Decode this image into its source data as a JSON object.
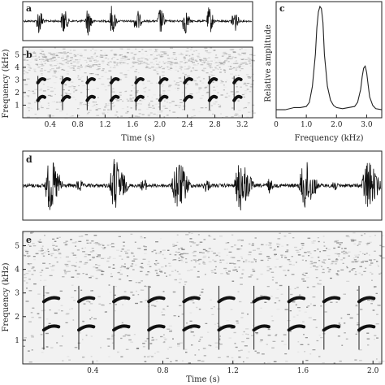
{
  "chart_data": [
    {
      "panel": "a",
      "type": "line",
      "title": "",
      "xlabel": "",
      "ylabel": "",
      "pulse_times": [
        0.22,
        0.58,
        0.94,
        1.29,
        1.65,
        2.0,
        2.36,
        2.72,
        3.08
      ],
      "xlim": [
        0.0,
        3.35
      ]
    },
    {
      "panel": "b",
      "type": "heatmap",
      "title": "",
      "xlabel": "Time (s)",
      "ylabel": "Frequency (kHz)",
      "xlim": [
        0.0,
        3.35
      ],
      "ylim": [
        0,
        5.6
      ],
      "x_ticks": [
        0.4,
        0.8,
        1.2,
        1.6,
        2.0,
        2.4,
        2.8,
        3.2
      ],
      "x_tick_labels": [
        "0.4",
        "0.8",
        "1.2",
        "1.6",
        "2.0",
        "2.4",
        "2.8",
        "3.2"
      ],
      "y_ticks": [
        1,
        2,
        3,
        4,
        5
      ],
      "y_tick_labels": [
        "1",
        "2",
        "3",
        "4",
        "5"
      ],
      "call_times": [
        0.22,
        0.58,
        0.94,
        1.29,
        1.65,
        2.0,
        2.36,
        2.72,
        3.08
      ],
      "call_bands_khz": [
        1.5,
        2.9
      ]
    },
    {
      "panel": "c",
      "type": "line",
      "title": "",
      "xlabel": "Frequency (kHz)",
      "ylabel": "Relative amplitude",
      "xlim": [
        0,
        3.5
      ],
      "x_ticks": [
        0,
        1.0,
        2.0,
        3.0
      ],
      "x_tick_labels": [
        "0",
        "1.0",
        "2.0",
        "3.0"
      ],
      "x": [
        0,
        0.3,
        0.6,
        0.8,
        1.0,
        1.1,
        1.2,
        1.3,
        1.35,
        1.4,
        1.45,
        1.5,
        1.55,
        1.6,
        1.7,
        1.8,
        1.9,
        2.0,
        2.2,
        2.4,
        2.6,
        2.7,
        2.8,
        2.85,
        2.9,
        2.95,
        3.0,
        3.05,
        3.1,
        3.2,
        3.3,
        3.5
      ],
      "y": [
        0.03,
        0.03,
        0.05,
        0.05,
        0.06,
        0.1,
        0.25,
        0.55,
        0.8,
        0.95,
        1.0,
        0.98,
        0.85,
        0.55,
        0.25,
        0.12,
        0.07,
        0.05,
        0.04,
        0.05,
        0.06,
        0.1,
        0.22,
        0.34,
        0.42,
        0.44,
        0.38,
        0.26,
        0.15,
        0.07,
        0.04,
        0.03
      ]
    },
    {
      "panel": "d",
      "type": "line",
      "title": "",
      "xlabel": "",
      "ylabel": "",
      "pulse_times": [
        0.15,
        0.52,
        0.88,
        1.24,
        1.61,
        1.97
      ],
      "xlim": [
        0.0,
        2.05
      ]
    },
    {
      "panel": "e",
      "type": "heatmap",
      "title": "",
      "xlabel": "Time (s)",
      "ylabel": "Frequency (kHz)",
      "xlim": [
        0.0,
        2.05
      ],
      "ylim": [
        0,
        5.6
      ],
      "x_ticks": [
        0.4,
        0.8,
        1.2,
        1.6,
        2.0
      ],
      "x_tick_labels": [
        "0.4",
        "0.8",
        "1.2",
        "1.6",
        "2.0"
      ],
      "y_ticks": [
        1,
        2,
        3,
        4,
        5
      ],
      "y_tick_labels": [
        "1",
        "2",
        "3",
        "4",
        "5"
      ],
      "call_times": [
        0.12,
        0.32,
        0.52,
        0.72,
        0.92,
        1.12,
        1.32,
        1.52,
        1.72,
        1.92
      ],
      "call_bands_khz": [
        1.5,
        2.7
      ]
    }
  ],
  "labels": {
    "panel_a": "a",
    "panel_b": "b",
    "panel_c": "c",
    "panel_d": "d",
    "panel_e": "e",
    "b_xlabel": "Time (s)",
    "b_ylabel": "Frequency (kHz)",
    "c_xlabel": "Frequency (kHz)",
    "c_ylabel": "Relative amplitude",
    "e_xlabel": "Time (s)",
    "e_ylabel": "Frequency (kHz)"
  }
}
